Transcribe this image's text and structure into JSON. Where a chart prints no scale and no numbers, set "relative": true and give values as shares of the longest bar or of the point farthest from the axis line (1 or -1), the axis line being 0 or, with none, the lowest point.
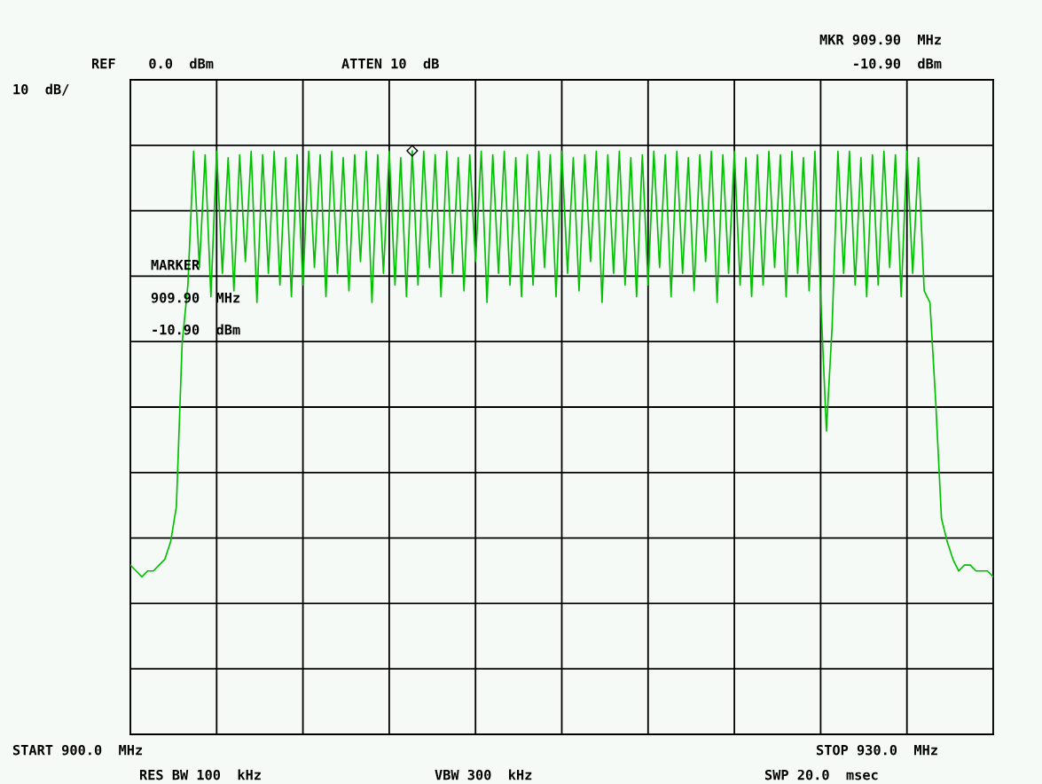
{
  "chart_data": {
    "type": "line",
    "relative": true,
    "grid": true,
    "categories": [
      null,
      null,
      null,
      null,
      null,
      null,
      null,
      null,
      null,
      null,
      null,
      null,
      null,
      null,
      null,
      null,
      null,
      null,
      null,
      null,
      null,
      null,
      null,
      null,
      null,
      null,
      null,
      null,
      null,
      null,
      null,
      null,
      null,
      null,
      null,
      null,
      null,
      null,
      null,
      null,
      null,
      null,
      null,
      null,
      null,
      null,
      null,
      null,
      null,
      null,
      null,
      null,
      null,
      null,
      null,
      null,
      null,
      null,
      null,
      null,
      null,
      null,
      null,
      null,
      null,
      null,
      null,
      null,
      null,
      null,
      null,
      null,
      null,
      null,
      null,
      null,
      null,
      null,
      null,
      null,
      null,
      null,
      null,
      null,
      null,
      null,
      null,
      null,
      null,
      null,
      null,
      null,
      null,
      null,
      null,
      null,
      null,
      null,
      null,
      null,
      null,
      null,
      null,
      null,
      null,
      null,
      null,
      null,
      null,
      null,
      null,
      null,
      null,
      null,
      null,
      null,
      null,
      null,
      null,
      null,
      null,
      null,
      null,
      null,
      null,
      null,
      null,
      null,
      null,
      null,
      null,
      null,
      null,
      null,
      null,
      null,
      null,
      null,
      null,
      null,
      null,
      null,
      null,
      null,
      null,
      null,
      null,
      null,
      null,
      null,
      null
    ],
    "annotations": [
      "REF    0.0  dBm",
      "ATTEN 10  dB",
      "MKR 909.90  MHz",
      "-10.90  dBm",
      "10  dB/",
      "MARKER",
      "909.90  MHz",
      "-10.90  dBm",
      "START 900.0  MHz",
      "STOP 930.0  MHz",
      "RES BW 100  kHz",
      "VBW 300  kHz",
      "SWP 20.0  msec"
    ],
    "series": [
      {
        "color": "#00c000",
        "values": [
          0.29,
          0.28,
          0.27,
          0.28,
          0.28,
          0.29,
          0.3,
          0.33,
          0.39,
          0.67,
          0.77,
          0.999,
          0.8,
          0.993,
          0.75,
          0.999,
          0.79,
          0.988,
          0.76,
          0.993,
          0.81,
          0.999,
          0.74,
          0.993,
          0.79,
          0.999,
          0.77,
          0.988,
          0.75,
          0.993,
          0.77,
          0.999,
          0.8,
          0.993,
          0.75,
          0.999,
          0.79,
          0.988,
          0.76,
          0.993,
          0.81,
          0.999,
          0.74,
          0.993,
          0.79,
          0.999,
          0.77,
          0.988,
          0.75,
          1,
          0.77,
          0.999,
          0.8,
          0.993,
          0.75,
          0.999,
          0.79,
          0.988,
          0.76,
          0.993,
          0.81,
          0.999,
          0.74,
          0.993,
          0.79,
          0.999,
          0.77,
          0.988,
          0.75,
          0.993,
          0.77,
          0.999,
          0.8,
          0.993,
          0.75,
          0.999,
          0.79,
          0.988,
          0.76,
          0.993,
          0.81,
          0.999,
          0.74,
          0.993,
          0.79,
          0.999,
          0.77,
          0.988,
          0.75,
          0.993,
          0.77,
          0.999,
          0.8,
          0.993,
          0.75,
          0.999,
          0.79,
          0.988,
          0.76,
          0.993,
          0.81,
          0.999,
          0.74,
          0.993,
          0.79,
          0.999,
          0.77,
          0.988,
          0.75,
          0.993,
          0.77,
          0.999,
          0.8,
          0.993,
          0.75,
          0.999,
          0.79,
          0.988,
          0.76,
          0.999,
          0.75,
          0.52,
          0.7,
          0.999,
          0.79,
          0.999,
          0.77,
          0.988,
          0.75,
          0.993,
          0.77,
          0.999,
          0.8,
          0.993,
          0.75,
          0.999,
          0.79,
          0.988,
          0.76,
          0.74,
          0.57,
          0.37,
          0.33,
          0.3,
          0.28,
          0.29,
          0.29,
          0.28,
          0.28,
          0.28,
          0.27
        ]
      }
    ]
  }
}
